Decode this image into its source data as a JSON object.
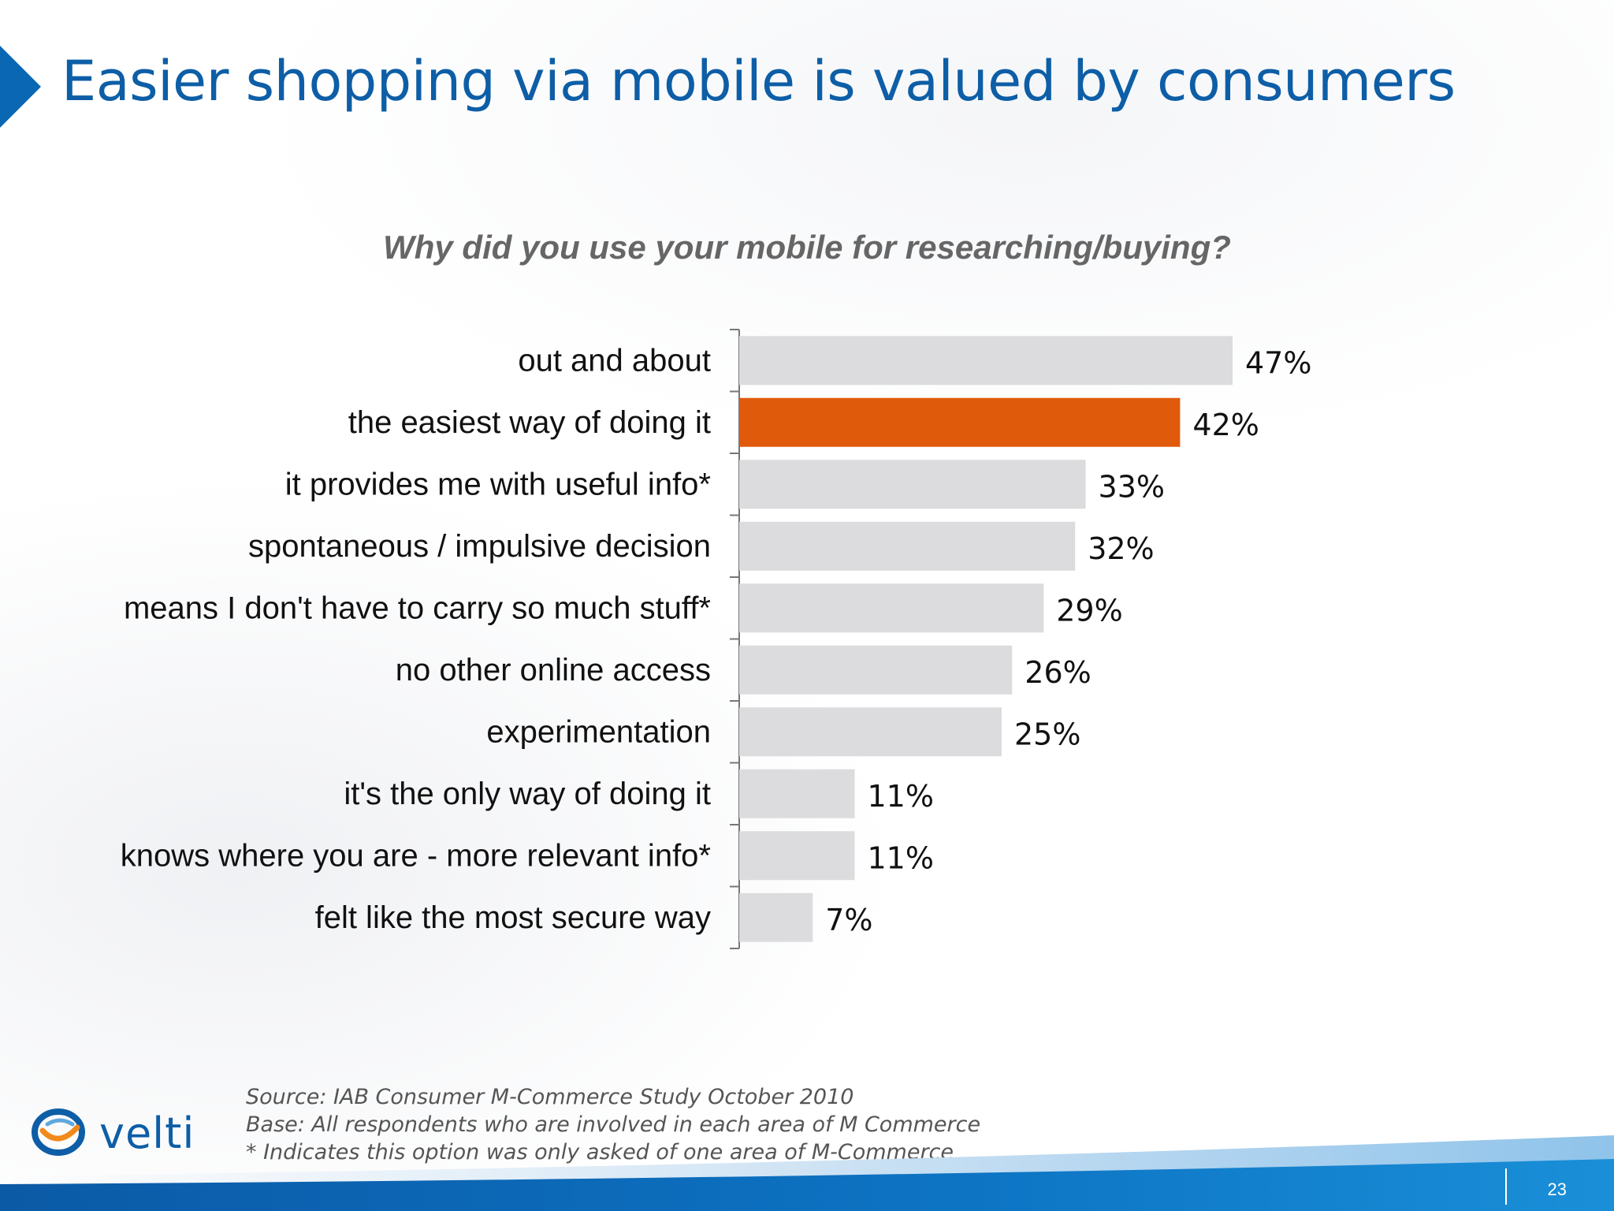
{
  "slide": {
    "title": "Easier shopping via mobile is valued by consumers",
    "page_number": "23",
    "brand": "velti",
    "source_lines": [
      "Source: IAB Consumer M-Commerce Study October 2010",
      "Base: All respondents who are involved in each area of M Commerce",
      "* Indicates this option was only asked of one area of M-Commerce"
    ]
  },
  "colors": {
    "title": "#0d5ea6",
    "bar": "#dcdbdd",
    "highlight": "#e05a0c"
  },
  "chart_data": {
    "type": "bar",
    "orientation": "horizontal",
    "title": "Why did you use your mobile for researching/buying?",
    "categories": [
      "out and about",
      "the easiest way of doing it",
      "it provides me with useful info*",
      "spontaneous / impulsive decision",
      "means I don't have to carry so much stuff*",
      "no other online access",
      "experimentation",
      "it's the only way of doing it",
      "knows where you are - more relevant info*",
      "felt like the most secure way"
    ],
    "values": [
      47,
      42,
      33,
      32,
      29,
      26,
      25,
      11,
      11,
      7
    ],
    "labels": [
      "47%",
      "42%",
      "33%",
      "32%",
      "29%",
      "26%",
      "25%",
      "11%",
      "11%",
      "7%"
    ],
    "highlight_index": 1,
    "xlim": [
      0,
      47
    ],
    "grid": false,
    "legend": "none"
  }
}
